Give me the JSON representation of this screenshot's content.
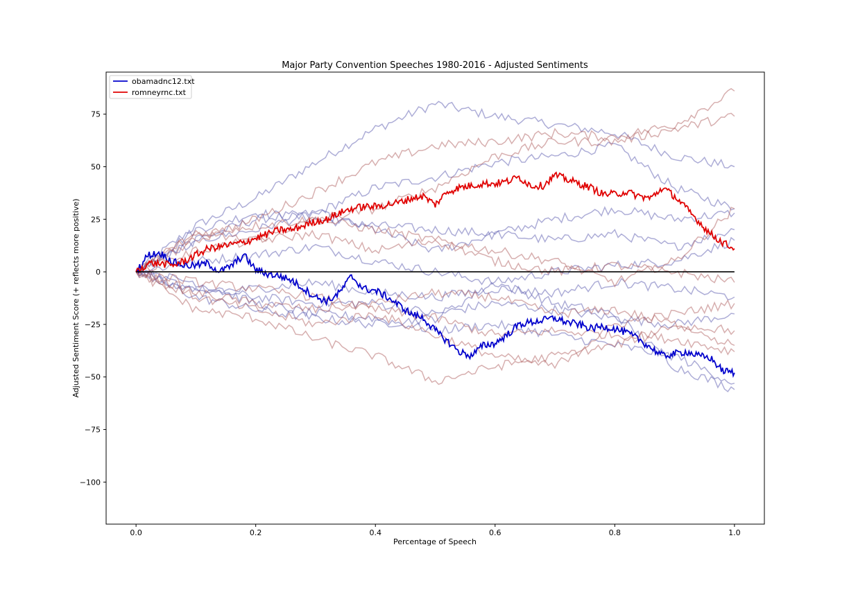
{
  "chart_data": {
    "type": "line",
    "title": "Major Party Convention Speeches 1980-2016 - Adjusted Sentiments",
    "xlabel": "Percentage of Speech",
    "ylabel": "Adjusted Sentiment Score (+ reflects more positive)",
    "xlim": [
      -0.05,
      1.05
    ],
    "ylim": [
      -120,
      95
    ],
    "xticks": [
      0.0,
      0.2,
      0.4,
      0.6,
      0.8,
      1.0
    ],
    "xtick_labels": [
      "0.0",
      "0.2",
      "0.4",
      "0.6",
      "0.8",
      "1.0"
    ],
    "yticks": [
      75,
      50,
      25,
      0,
      -25,
      -50,
      -75,
      -100
    ],
    "ytick_labels": [
      "75",
      "50",
      "25",
      "0",
      "−25",
      "−50",
      "−75",
      "−100"
    ],
    "grid": false,
    "legend_position": "top-left",
    "colors": {
      "highlight_blue": "#0000cc",
      "highlight_red": "#e00000",
      "background_blue": "#5b5bb0",
      "background_red": "#b06060",
      "zero_line": "#000000"
    },
    "series": [
      {
        "name": "obamadnc12.txt",
        "role": "highlight",
        "party": "blue",
        "x": [
          0,
          0.02,
          0.04,
          0.06,
          0.08,
          0.1,
          0.12,
          0.14,
          0.16,
          0.18,
          0.2,
          0.22,
          0.24,
          0.26,
          0.28,
          0.3,
          0.32,
          0.34,
          0.36,
          0.38,
          0.4,
          0.42,
          0.44,
          0.46,
          0.48,
          0.5,
          0.52,
          0.54,
          0.56,
          0.58,
          0.6,
          0.62,
          0.64,
          0.66,
          0.68,
          0.7,
          0.72,
          0.74,
          0.76,
          0.78,
          0.8,
          0.82,
          0.84,
          0.86,
          0.88,
          0.9,
          0.92,
          0.94,
          0.96,
          0.98,
          1.0
        ],
        "y": [
          0,
          8,
          9,
          5,
          3,
          3,
          4,
          0,
          3,
          8,
          1,
          -1,
          -2,
          -4,
          -8,
          -12,
          -14,
          -10,
          -2,
          -8,
          -9,
          -12,
          -16,
          -20,
          -22,
          -28,
          -33,
          -38,
          -40,
          -35,
          -34,
          -30,
          -25,
          -24,
          -23,
          -22,
          -24,
          -25,
          -27,
          -26,
          -27,
          -29,
          -32,
          -36,
          -40,
          -39,
          -38,
          -40,
          -41,
          -47,
          -48
        ]
      },
      {
        "name": "romneyrnc.txt",
        "role": "highlight",
        "party": "red",
        "x": [
          0,
          0.02,
          0.04,
          0.06,
          0.08,
          0.1,
          0.12,
          0.14,
          0.16,
          0.18,
          0.2,
          0.22,
          0.24,
          0.26,
          0.28,
          0.3,
          0.32,
          0.34,
          0.36,
          0.38,
          0.4,
          0.42,
          0.44,
          0.46,
          0.48,
          0.5,
          0.52,
          0.54,
          0.56,
          0.58,
          0.6,
          0.62,
          0.64,
          0.66,
          0.68,
          0.7,
          0.72,
          0.74,
          0.76,
          0.78,
          0.8,
          0.82,
          0.84,
          0.86,
          0.88,
          0.9,
          0.92,
          0.94,
          0.96,
          0.98,
          1.0
        ],
        "y": [
          0,
          4,
          4,
          3,
          5,
          8,
          11,
          12,
          13,
          14,
          16,
          18,
          20,
          20,
          22,
          24,
          25,
          28,
          30,
          31,
          31,
          32,
          33,
          35,
          36,
          32,
          38,
          40,
          41,
          42,
          42,
          43,
          45,
          41,
          41,
          46,
          44,
          42,
          40,
          37,
          37,
          38,
          36,
          35,
          40,
          36,
          30,
          24,
          18,
          14,
          11
        ]
      },
      {
        "party": "blue",
        "x": [
          0,
          0.1,
          0.2,
          0.3,
          0.4,
          0.5,
          0.6,
          0.7,
          0.8,
          0.9,
          1.0
        ],
        "y": [
          0,
          22,
          35,
          52,
          68,
          80,
          74,
          70,
          66,
          55,
          50
        ]
      },
      {
        "party": "blue",
        "x": [
          0,
          0.1,
          0.2,
          0.3,
          0.4,
          0.5,
          0.6,
          0.7,
          0.8,
          0.9,
          1.0
        ],
        "y": [
          0,
          15,
          25,
          28,
          40,
          45,
          52,
          55,
          60,
          40,
          30
        ]
      },
      {
        "party": "blue",
        "x": [
          0,
          0.1,
          0.2,
          0.3,
          0.4,
          0.5,
          0.6,
          0.7,
          0.8,
          0.9,
          1.0
        ],
        "y": [
          0,
          20,
          28,
          25,
          22,
          20,
          18,
          25,
          30,
          25,
          28
        ]
      },
      {
        "party": "blue",
        "x": [
          0,
          0.1,
          0.2,
          0.3,
          0.4,
          0.5,
          0.6,
          0.7,
          0.8,
          0.9,
          1.0
        ],
        "y": [
          0,
          15,
          20,
          28,
          20,
          10,
          18,
          15,
          18,
          12,
          20
        ]
      },
      {
        "party": "blue",
        "x": [
          0,
          0.1,
          0.2,
          0.3,
          0.4,
          0.5,
          0.6,
          0.7,
          0.8,
          0.9,
          1.0
        ],
        "y": [
          0,
          5,
          8,
          12,
          5,
          0,
          -5,
          0,
          3,
          5,
          15
        ]
      },
      {
        "party": "blue",
        "x": [
          0,
          0.1,
          0.2,
          0.3,
          0.4,
          0.5,
          0.6,
          0.7,
          0.8,
          0.9,
          1.0
        ],
        "y": [
          0,
          -8,
          -12,
          -15,
          -15,
          -20,
          -15,
          -18,
          -22,
          -25,
          -20
        ]
      },
      {
        "party": "blue",
        "x": [
          0,
          0.1,
          0.2,
          0.3,
          0.4,
          0.5,
          0.6,
          0.7,
          0.8,
          0.9,
          1.0
        ],
        "y": [
          0,
          -12,
          -18,
          -22,
          -25,
          -22,
          -5,
          -15,
          -20,
          -45,
          -56
        ]
      },
      {
        "party": "blue",
        "x": [
          0,
          0.1,
          0.2,
          0.3,
          0.4,
          0.5,
          0.6,
          0.7,
          0.8,
          0.9,
          1.0
        ],
        "y": [
          0,
          -5,
          -15,
          -20,
          -22,
          -28,
          -25,
          -30,
          -35,
          -40,
          -53
        ]
      },
      {
        "party": "blue",
        "x": [
          0,
          0.1,
          0.2,
          0.3,
          0.4,
          0.5,
          0.6,
          0.7,
          0.8,
          0.9,
          1.0
        ],
        "y": [
          0,
          -10,
          -8,
          -5,
          -10,
          -12,
          -8,
          -10,
          -5,
          -8,
          -12
        ]
      },
      {
        "party": "red",
        "x": [
          0,
          0.1,
          0.2,
          0.3,
          0.4,
          0.5,
          0.6,
          0.7,
          0.8,
          0.9,
          1.0
        ],
        "y": [
          0,
          15,
          25,
          38,
          52,
          60,
          62,
          66,
          64,
          70,
          86
        ]
      },
      {
        "party": "red",
        "x": [
          0,
          0.1,
          0.2,
          0.3,
          0.4,
          0.5,
          0.6,
          0.7,
          0.8,
          0.9,
          1.0
        ],
        "y": [
          0,
          18,
          15,
          25,
          30,
          40,
          55,
          62,
          62,
          68,
          74
        ]
      },
      {
        "party": "red",
        "x": [
          0,
          0.1,
          0.2,
          0.3,
          0.4,
          0.5,
          0.6,
          0.7,
          0.8,
          0.9,
          1.0
        ],
        "y": [
          0,
          18,
          22,
          25,
          20,
          15,
          10,
          5,
          -5,
          5,
          30
        ]
      },
      {
        "party": "red",
        "x": [
          0,
          0.1,
          0.2,
          0.3,
          0.4,
          0.5,
          0.6,
          0.7,
          0.8,
          0.9,
          1.0
        ],
        "y": [
          0,
          10,
          15,
          18,
          10,
          15,
          5,
          0,
          3,
          0,
          -5
        ]
      },
      {
        "party": "red",
        "x": [
          0,
          0.1,
          0.2,
          0.3,
          0.4,
          0.5,
          0.6,
          0.7,
          0.8,
          0.9,
          1.0
        ],
        "y": [
          0,
          -10,
          -15,
          -18,
          -15,
          -10,
          -12,
          -20,
          -18,
          -25,
          -28
        ]
      },
      {
        "party": "red",
        "x": [
          0,
          0.1,
          0.2,
          0.3,
          0.4,
          0.5,
          0.6,
          0.7,
          0.8,
          0.9,
          1.0
        ],
        "y": [
          0,
          -18,
          -22,
          -32,
          -40,
          -52,
          -45,
          -40,
          -35,
          -25,
          -35
        ]
      },
      {
        "party": "red",
        "x": [
          0,
          0.1,
          0.2,
          0.3,
          0.4,
          0.5,
          0.6,
          0.7,
          0.8,
          0.9,
          1.0
        ],
        "y": [
          0,
          -5,
          -8,
          -12,
          -18,
          -22,
          -30,
          -28,
          -30,
          -32,
          -38
        ]
      },
      {
        "party": "red",
        "x": [
          0,
          0.1,
          0.2,
          0.3,
          0.4,
          0.5,
          0.6,
          0.7,
          0.8,
          0.9,
          1.0
        ],
        "y": [
          0,
          -12,
          -18,
          -25,
          -20,
          -30,
          -40,
          -45,
          -25,
          -20,
          -15
        ]
      }
    ]
  }
}
